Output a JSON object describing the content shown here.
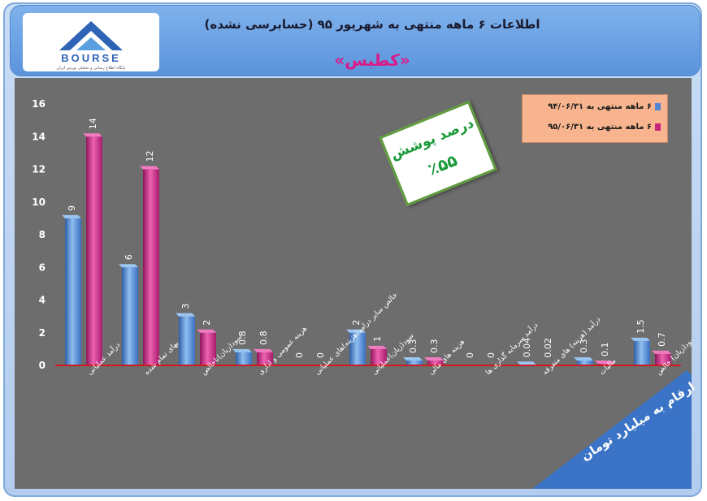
{
  "header": {
    "title": "اطلاعات ۶ ماهه منتهی به شهریور ۹۵ (حسابرسی نشده)",
    "symbol": "«کطبس»",
    "logo_text": "BOURSE",
    "logo_caption": "پایگاه اطلاع رسانی و تحلیلی بورس ایران"
  },
  "coverage": {
    "label": "درصد پوشش",
    "value": "٪۵۵"
  },
  "unit_note": "ارقام به میلیارد تومان",
  "colors": {
    "series1": "#4f86cf",
    "series2": "#c8247e",
    "plot_bg": "#6d6d6d",
    "baseline": "#d11a1a",
    "legend_bg": "#f7b48e"
  },
  "chart_data": {
    "type": "bar",
    "categories": [
      "درآمد عملیاتی",
      "بهای تمام شده",
      "سود(زیان)ناخالص",
      "هزینه عمومی و اداری",
      "خالص سایر درامد(هزینه)های عملیاتی",
      "سود(زیان)عملیاتی",
      "هزینه های مالی",
      "درآمد سرمایه گذاری ها",
      "درآمد (هزینه) های متفرقه",
      "مالیات",
      "سود(زیان) خالص"
    ],
    "series": [
      {
        "name": "۶ ماهه منتهی به ۹۴/۰۶/۳۱",
        "values": [
          9,
          6,
          3,
          0.8,
          0,
          2,
          0.3,
          0,
          0.04,
          0.3,
          1.5
        ]
      },
      {
        "name": "۶ ماهه منتهی به ۹۵/۰۶/۳۱",
        "values": [
          14,
          12,
          2,
          0.8,
          0,
          1,
          0.3,
          0,
          0.02,
          0.1,
          0.7
        ]
      }
    ],
    "value_labels": [
      [
        "9",
        "6",
        "3",
        "0.8",
        "0",
        "2",
        "0.3",
        "0",
        "0.04",
        "0.3",
        "1.5"
      ],
      [
        "14",
        "12",
        "2",
        "0.8",
        "0",
        "1",
        "0.3",
        "0",
        "0.02",
        "0.1",
        "0.7"
      ]
    ],
    "yticks": [
      "0",
      "2",
      "4",
      "6",
      "8",
      "10",
      "12",
      "14",
      "16"
    ],
    "ylim": [
      0,
      16
    ],
    "legend_position": "top-right",
    "grid": false
  }
}
